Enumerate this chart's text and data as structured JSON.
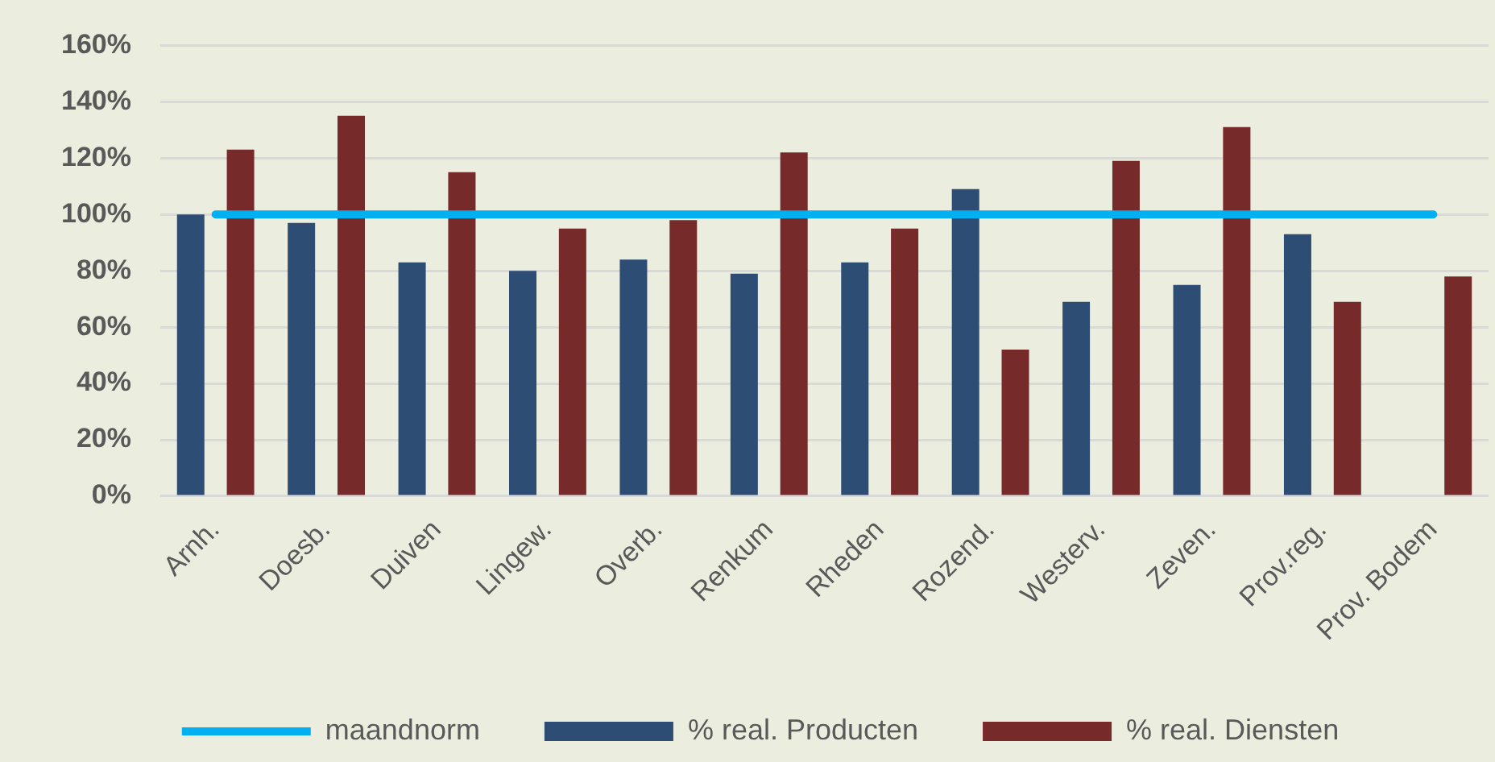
{
  "chart_data": {
    "type": "bar",
    "categories": [
      "Arnh.",
      "Doesb.",
      "Duiven",
      "Lingew.",
      "Overb.",
      "Renkum",
      "Rheden",
      "Rozend.",
      "Westerv.",
      "Zeven.",
      "Prov.reg.",
      "Prov. Bodem"
    ],
    "series": [
      {
        "name": "% real. Producten",
        "color": "#2e4d74",
        "values": [
          100,
          97,
          83,
          80,
          84,
          79,
          83,
          109,
          69,
          75,
          93,
          null
        ]
      },
      {
        "name": "% real. Diensten",
        "color": "#772a2a",
        "values": [
          123,
          135,
          115,
          95,
          98,
          122,
          95,
          52,
          119,
          131,
          69,
          78
        ]
      },
      {
        "name": "maandnorm",
        "type": "line",
        "color": "#00b0f0",
        "values": [
          100,
          100,
          100,
          100,
          100,
          100,
          100,
          100,
          100,
          100,
          100,
          100
        ]
      }
    ],
    "ylim": [
      0,
      160
    ],
    "yticks": [
      {
        "value": 0,
        "label": "0%"
      },
      {
        "value": 20,
        "label": "20%"
      },
      {
        "value": 40,
        "label": "40%"
      },
      {
        "value": 60,
        "label": "60%"
      },
      {
        "value": 80,
        "label": "80%"
      },
      {
        "value": 100,
        "label": "100%"
      },
      {
        "value": 120,
        "label": "120%"
      },
      {
        "value": 140,
        "label": "140%"
      },
      {
        "value": 160,
        "label": "160%"
      }
    ],
    "grid": "y",
    "legend": "bottom"
  }
}
